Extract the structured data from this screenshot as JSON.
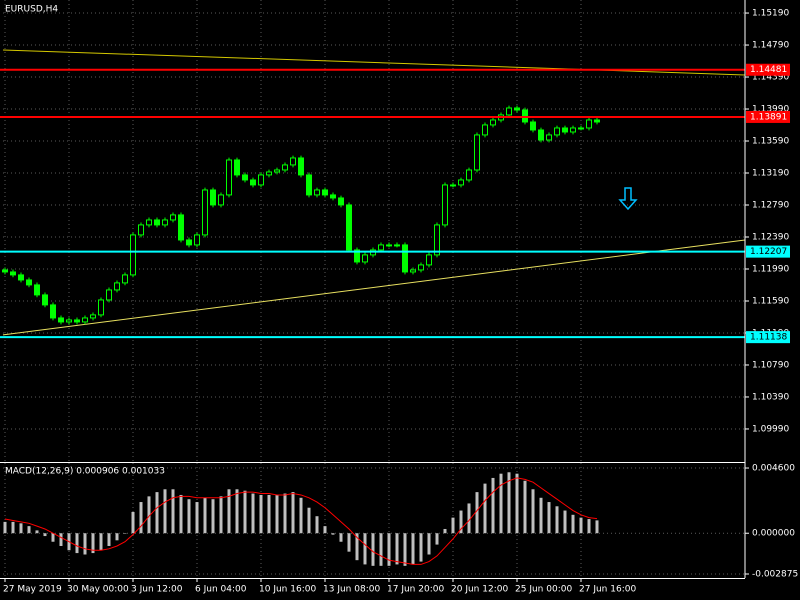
{
  "chart_data": [
    {
      "type": "candlestick",
      "title": "EURUSD,H4",
      "open": [
        1.11978,
        1.11953,
        1.11916,
        1.11853,
        1.11791,
        1.11666,
        1.11541,
        1.11378,
        1.11328,
        1.11353,
        1.11328,
        1.11378,
        1.11416,
        1.11603,
        1.11728,
        1.11816,
        1.11916,
        1.12416,
        1.12541,
        1.12603,
        1.12541,
        1.12603,
        1.12666,
        1.12353,
        1.12291,
        1.12416,
        1.12978,
        1.12791,
        1.12916,
        1.13353,
        1.13166,
        1.13103,
        1.13041,
        1.13166,
        1.13203,
        1.13228,
        1.13291,
        1.13378,
        1.13166,
        1.12916,
        1.12978,
        1.12916,
        1.12878,
        1.12791,
        1.12228,
        1.12078,
        1.12166,
        1.12228,
        1.12291,
        1.12291,
        1.12291,
        1.11953,
        1.11978,
        1.12041,
        1.12166,
        1.12541,
        1.13041,
        1.13041,
        1.13103,
        1.13228,
        1.13666,
        1.13791,
        1.13853,
        1.13916,
        1.14003,
        1.13978,
        1.13828,
        1.13728,
        1.13603,
        1.13666,
        1.13753,
        1.13703,
        1.13753,
        1.13753,
        1.13853
      ],
      "high": [
        1.12008,
        1.11983,
        1.11946,
        1.11883,
        1.11821,
        1.11696,
        1.11571,
        1.11408,
        1.11383,
        1.11383,
        1.11408,
        1.11446,
        1.11633,
        1.11758,
        1.11846,
        1.11946,
        1.12446,
        1.12571,
        1.12633,
        1.12633,
        1.12633,
        1.12696,
        1.12696,
        1.12383,
        1.12446,
        1.13008,
        1.13008,
        1.12946,
        1.13383,
        1.13383,
        1.13196,
        1.13133,
        1.13196,
        1.13233,
        1.13258,
        1.13321,
        1.13408,
        1.13408,
        1.13196,
        1.13008,
        1.13008,
        1.12946,
        1.12908,
        1.12821,
        1.12258,
        1.12196,
        1.12258,
        1.12321,
        1.12321,
        1.12321,
        1.12321,
        1.12008,
        1.12071,
        1.12196,
        1.12571,
        1.13071,
        1.13071,
        1.13133,
        1.13258,
        1.13696,
        1.13821,
        1.13883,
        1.13946,
        1.14033,
        1.14033,
        1.14008,
        1.13858,
        1.13758,
        1.13696,
        1.13783,
        1.13783,
        1.13783,
        1.13783,
        1.13883,
        1.13883
      ],
      "low": [
        1.11923,
        1.11886,
        1.11823,
        1.11761,
        1.11636,
        1.11511,
        1.11348,
        1.11298,
        1.11298,
        1.11298,
        1.11298,
        1.11348,
        1.11386,
        1.11573,
        1.11698,
        1.11786,
        1.11886,
        1.12386,
        1.12511,
        1.12511,
        1.12511,
        1.12573,
        1.12323,
        1.12261,
        1.12261,
        1.12386,
        1.12761,
        1.12761,
        1.12886,
        1.13136,
        1.13073,
        1.13011,
        1.13011,
        1.13136,
        1.13173,
        1.13198,
        1.13261,
        1.13136,
        1.12886,
        1.12886,
        1.12886,
        1.12848,
        1.12761,
        1.12198,
        1.12048,
        1.12048,
        1.12136,
        1.12198,
        1.12261,
        1.12261,
        1.11923,
        1.11923,
        1.11948,
        1.12011,
        1.12136,
        1.12511,
        1.13011,
        1.13011,
        1.13073,
        1.13198,
        1.13636,
        1.13761,
        1.13823,
        1.13886,
        1.13948,
        1.13798,
        1.13698,
        1.13573,
        1.13573,
        1.13636,
        1.13673,
        1.13673,
        1.13723,
        1.13723,
        1.13798
      ],
      "close": [
        1.11953,
        1.11916,
        1.11853,
        1.11791,
        1.11666,
        1.11541,
        1.11378,
        1.11328,
        1.11353,
        1.11328,
        1.11378,
        1.11416,
        1.11603,
        1.11728,
        1.11816,
        1.11916,
        1.12416,
        1.12541,
        1.12603,
        1.12541,
        1.12603,
        1.12666,
        1.12353,
        1.12291,
        1.12416,
        1.12978,
        1.12791,
        1.12916,
        1.13353,
        1.13166,
        1.13103,
        1.13041,
        1.13166,
        1.13203,
        1.13228,
        1.13291,
        1.13378,
        1.13166,
        1.12916,
        1.12978,
        1.12916,
        1.12878,
        1.12791,
        1.12228,
        1.12078,
        1.12166,
        1.12228,
        1.12291,
        1.12291,
        1.12291,
        1.11953,
        1.11978,
        1.12041,
        1.12166,
        1.12541,
        1.13041,
        1.13041,
        1.13103,
        1.13228,
        1.13666,
        1.13791,
        1.13853,
        1.13916,
        1.14003,
        1.13978,
        1.13828,
        1.13728,
        1.13603,
        1.13666,
        1.13753,
        1.13703,
        1.13753,
        1.13753,
        1.13853,
        1.13828
      ],
      "color": "#00ff00",
      "ylim": [
        1.09577,
        1.15353
      ],
      "yticks": [
        {
          "value": 1.1519,
          "label": "1.15190"
        },
        {
          "value": 1.1479,
          "label": "1.14790"
        },
        {
          "value": 1.1439,
          "label": "1.14390"
        },
        {
          "value": 1.1399,
          "label": "1.13990"
        },
        {
          "value": 1.1359,
          "label": "1.13590"
        },
        {
          "value": 1.1319,
          "label": "1.13190"
        },
        {
          "value": 1.1279,
          "label": "1.12790"
        },
        {
          "value": 1.1239,
          "label": "1.12390"
        },
        {
          "value": 1.1199,
          "label": "1.11990"
        },
        {
          "value": 1.1159,
          "label": "1.11590"
        },
        {
          "value": 1.1119,
          "label": "1.11190"
        },
        {
          "value": 1.1079,
          "label": "1.10790"
        },
        {
          "value": 1.1039,
          "label": "1.10390"
        },
        {
          "value": 1.0999,
          "label": "1.09990"
        }
      ],
      "levels": [
        {
          "value": 1.14481,
          "color": "#ff0000"
        },
        {
          "value": 1.13891,
          "color": "#ff0000"
        },
        {
          "value": 1.12207,
          "color": "#00ffff"
        },
        {
          "value": 1.11138,
          "color": "#00ffff"
        }
      ],
      "trendlines": [
        {
          "x": [
            -0.25,
            92.5
          ],
          "values": [
            1.14728,
            1.14416
          ],
          "color": "#d4c800"
        },
        {
          "x": [
            -0.25,
            92.5
          ],
          "values": [
            1.11166,
            1.12353
          ],
          "color": "#e8e060"
        }
      ],
      "grid": true
    },
    {
      "type": "macd",
      "title": "MACD(12,26,9) 0.000906 0.001033",
      "categories": [
        "27 May 2019",
        null,
        null,
        null,
        null,
        null,
        null,
        null,
        "30 May 00:00",
        null,
        null,
        null,
        null,
        null,
        null,
        null,
        "3 Jun 12:00",
        null,
        null,
        null,
        null,
        null,
        null,
        null,
        "6 Jun 04:00",
        null,
        null,
        null,
        null,
        null,
        null,
        null,
        "10 Jun 16:00",
        null,
        null,
        null,
        null,
        null,
        null,
        null,
        "13 Jun 08:00",
        null,
        null,
        null,
        null,
        null,
        null,
        null,
        "17 Jun 20:00",
        null,
        null,
        null,
        null,
        null,
        null,
        null,
        "20 Jun 12:00",
        null,
        null,
        null,
        null,
        null,
        null,
        null,
        "25 Jun 00:00",
        null,
        null,
        null,
        null,
        null,
        null,
        null,
        "27 Jun 16:00",
        null,
        null
      ],
      "values": [
        0.0008,
        0.0008,
        0.0007,
        0.0005,
        0.0002,
        -0.0002,
        -0.0006,
        -0.0009,
        -0.0012,
        -0.0014,
        -0.0015,
        -0.0014,
        -0.0012,
        -0.0009,
        -0.0005,
        0.0,
        0.0015,
        0.0022,
        0.0026,
        0.0029,
        0.0031,
        0.0031,
        0.0027,
        0.0024,
        0.0022,
        0.0025,
        0.0024,
        0.0026,
        0.0031,
        0.0031,
        0.003,
        0.0028,
        0.0027,
        0.0027,
        0.0027,
        0.0028,
        0.0029,
        0.0025,
        0.0018,
        0.0012,
        0.0005,
        -0.0001,
        -0.0006,
        -0.0013,
        -0.0019,
        -0.0022,
        -0.0023,
        -0.0023,
        -0.0023,
        -0.0022,
        -0.0023,
        -0.0022,
        -0.002,
        -0.0015,
        -0.0008,
        0.0003,
        0.0011,
        0.0016,
        0.0021,
        0.0029,
        0.0035,
        0.0039,
        0.0042,
        0.0043,
        0.0042,
        0.0037,
        0.0031,
        0.0025,
        0.0022,
        0.0019,
        0.0016,
        0.0013,
        0.0011,
        0.001,
        0.000906
      ],
      "color": "#c0c0c0",
      "line_values": [
        0.001,
        0.0009,
        0.0008,
        0.0007,
        0.0005,
        0.0003,
        0.0,
        -0.0003,
        -0.0006,
        -0.0009,
        -0.0011,
        -0.0012,
        -0.0012,
        -0.0011,
        -0.0009,
        -0.0006,
        -0.0001,
        0.0005,
        0.0012,
        0.0018,
        0.0022,
        0.0025,
        0.0026,
        0.0026,
        0.0025,
        0.0025,
        0.0025,
        0.0025,
        0.0026,
        0.0028,
        0.0029,
        0.0029,
        0.0028,
        0.0028,
        0.0027,
        0.0027,
        0.0028,
        0.0027,
        0.0025,
        0.0022,
        0.0018,
        0.0013,
        0.0008,
        0.0003,
        -0.0003,
        -0.0008,
        -0.0013,
        -0.0016,
        -0.0019,
        -0.002,
        -0.0021,
        -0.0022,
        -0.0022,
        -0.002,
        -0.0016,
        -0.001,
        -0.0004,
        0.0003,
        0.0009,
        0.0016,
        0.0023,
        0.0029,
        0.0034,
        0.0037,
        0.0039,
        0.0038,
        0.0036,
        0.0032,
        0.0028,
        0.0024,
        0.002,
        0.0016,
        0.0013,
        0.0011,
        0.001033
      ],
      "line_color": "#ff0000",
      "ylim": [
        -0.003158,
        0.004954
      ],
      "yticks": [
        {
          "value": 0.0046,
          "label": "0.004600"
        },
        {
          "value": 0,
          "label": "0.000000"
        },
        {
          "value": -0.002875,
          "label": "-0.002875"
        }
      ],
      "grid": true
    }
  ]
}
